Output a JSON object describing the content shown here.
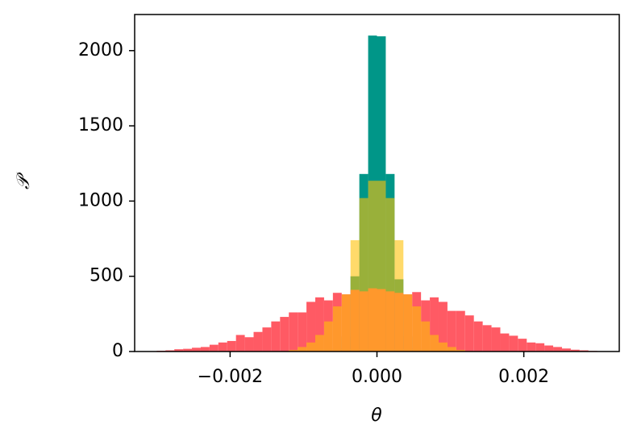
{
  "chart_data": {
    "type": "histogram",
    "xlabel": "θ",
    "ylabel": "𝒫",
    "bins": [
      -0.003,
      -0.00288,
      -0.00276,
      -0.00264,
      -0.00252,
      -0.0024,
      -0.00228,
      -0.00216,
      -0.00204,
      -0.00192,
      -0.0018,
      -0.00168,
      -0.00156,
      -0.00144,
      -0.00132,
      -0.0012,
      -0.00108,
      -0.00096,
      -0.00084,
      -0.00072,
      -0.0006,
      -0.00048,
      -0.00036,
      -0.00024,
      -0.00012,
      0,
      0.00012,
      0.00024,
      0.00036,
      0.00048,
      0.0006,
      0.00072,
      0.00084,
      0.00096,
      0.00108,
      0.0012,
      0.00132,
      0.00144,
      0.00156,
      0.00168,
      0.0018,
      0.00192,
      0.00204,
      0.00216,
      0.00228,
      0.0024,
      0.00252,
      0.00264,
      0.00276,
      0.00288,
      0.003
    ],
    "series": [
      {
        "color": "#009688",
        "opacity": 1,
        "values": [
          0,
          0,
          0,
          0,
          0,
          0,
          0,
          0,
          0,
          0,
          0,
          0,
          0,
          0,
          0,
          0,
          0,
          0,
          0,
          0,
          20,
          100,
          500,
          1180,
          2100,
          2095,
          1180,
          480,
          100,
          20,
          0,
          0,
          0,
          0,
          0,
          0,
          0,
          0,
          0,
          0,
          0,
          0,
          0,
          0,
          0,
          0,
          0,
          0,
          0,
          0
        ]
      },
      {
        "color": "#ff5a64",
        "opacity": 1,
        "values": [
          5,
          8,
          15,
          18,
          25,
          30,
          45,
          60,
          70,
          110,
          95,
          130,
          160,
          200,
          230,
          260,
          260,
          330,
          360,
          340,
          390,
          380,
          410,
          400,
          420,
          415,
          400,
          390,
          380,
          395,
          340,
          360,
          330,
          270,
          270,
          240,
          200,
          175,
          160,
          120,
          105,
          85,
          60,
          55,
          40,
          30,
          20,
          12,
          8,
          4
        ]
      },
      {
        "color": "#ffc107",
        "opacity": 0.6,
        "values": [
          0,
          0,
          0,
          0,
          0,
          0,
          0,
          0,
          0,
          0,
          0,
          0,
          0,
          0,
          0,
          10,
          30,
          60,
          110,
          200,
          300,
          380,
          740,
          1020,
          1135,
          1135,
          1020,
          740,
          380,
          300,
          200,
          110,
          60,
          30,
          10,
          0,
          0,
          0,
          0,
          0,
          0,
          0,
          0,
          0,
          0,
          0,
          0,
          0,
          0,
          0
        ]
      }
    ],
    "xlim": [
      -0.0033,
      0.0033
    ],
    "ylim": [
      0,
      2240
    ],
    "xticks": [
      {
        "value": -0.002,
        "label": "−0.002"
      },
      {
        "value": 0,
        "label": "0.000"
      },
      {
        "value": 0.002,
        "label": "0.002"
      }
    ],
    "yticks": [
      0,
      500,
      1000,
      1500,
      2000
    ]
  }
}
